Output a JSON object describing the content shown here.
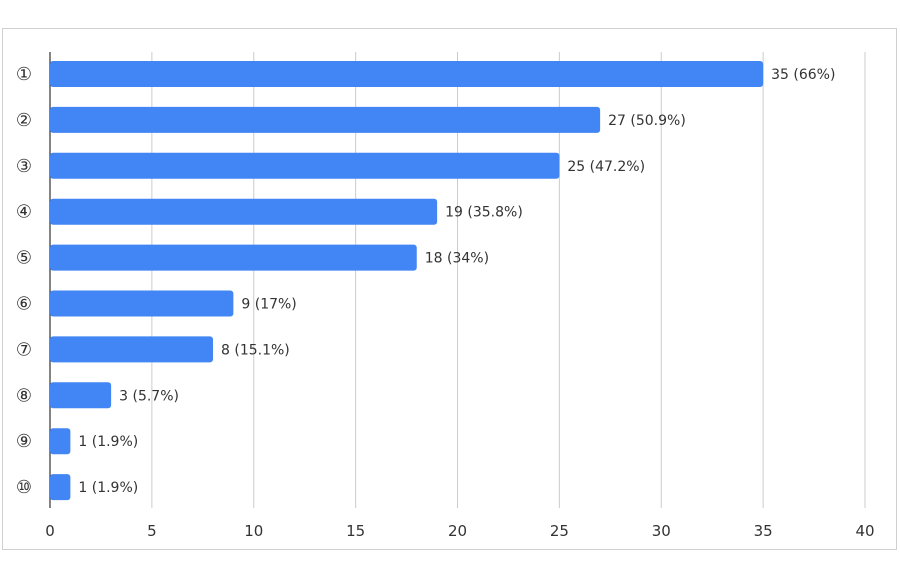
{
  "chart_data": {
    "type": "bar",
    "orientation": "horizontal",
    "categories": [
      "①",
      "②",
      "③",
      "④",
      "⑤",
      "⑥",
      "⑦",
      "⑧",
      "⑨",
      "⑩"
    ],
    "values": [
      35,
      27,
      25,
      19,
      18,
      9,
      8,
      3,
      1,
      1
    ],
    "data_labels": [
      "35 (66%)",
      "27 (50.9%)",
      "25 (47.2%)",
      "19 (35.8%)",
      "18 (34%)",
      "9 (17%)",
      "8 (15.1%)",
      "3 (5.7%)",
      "1 (1.9%)",
      "1 (1.9%)"
    ],
    "xlim": [
      0,
      40
    ],
    "x_ticks": [
      0,
      5,
      10,
      15,
      20,
      25,
      30,
      35,
      40
    ],
    "x_tick_labels": [
      "0",
      "5",
      "10",
      "15",
      "20",
      "25",
      "30",
      "35",
      "40"
    ],
    "title": "",
    "xlabel": "",
    "ylabel": "",
    "grid": "vertical",
    "legend": "none",
    "bar_color": "#4285f4",
    "grid_color": "#cccccc"
  }
}
